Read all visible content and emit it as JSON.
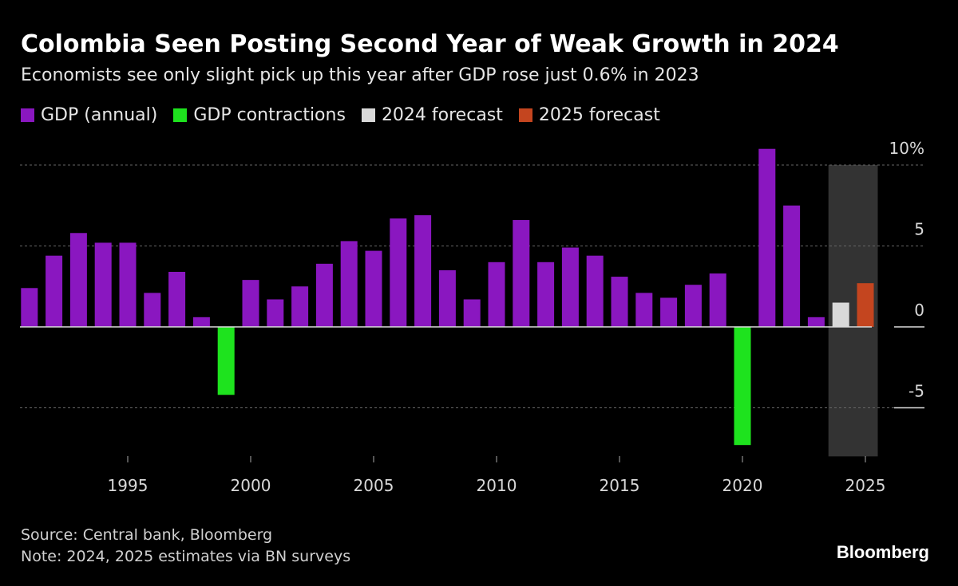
{
  "chart_data": {
    "type": "bar",
    "title": "Colombia Seen Posting Second Year of Weak Growth in 2024",
    "subtitle": "Economists see only slight pick up this year after GDP rose just 0.6% in 2023",
    "legend": [
      {
        "label": "GDP (annual)",
        "color": "#8a17c0"
      },
      {
        "label": "GDP contractions",
        "color": "#1ee31e"
      },
      {
        "label": "2024 forecast",
        "color": "#d9d9d9"
      },
      {
        "label": "2025 forecast",
        "color": "#c4451f"
      }
    ],
    "legend_placement": "top-left",
    "x": [
      1991,
      1992,
      1993,
      1994,
      1995,
      1996,
      1997,
      1998,
      1999,
      2000,
      2001,
      2002,
      2003,
      2004,
      2005,
      2006,
      2007,
      2008,
      2009,
      2010,
      2011,
      2012,
      2013,
      2014,
      2015,
      2016,
      2017,
      2018,
      2019,
      2020,
      2021,
      2022,
      2023,
      2024,
      2025
    ],
    "values": [
      2.4,
      4.4,
      5.8,
      5.2,
      5.2,
      2.1,
      3.4,
      0.6,
      -4.2,
      2.9,
      1.7,
      2.5,
      3.9,
      5.3,
      4.7,
      6.7,
      6.9,
      3.5,
      1.7,
      4.0,
      6.6,
      4.0,
      4.9,
      4.4,
      3.1,
      2.1,
      1.8,
      2.6,
      3.3,
      -7.3,
      11.0,
      7.5,
      0.6,
      1.5,
      2.7
    ],
    "x_ticks": [
      "1995",
      "2000",
      "2005",
      "2010",
      "2015",
      "2020",
      "2025"
    ],
    "x_tick_values": [
      1995,
      2000,
      2005,
      2010,
      2015,
      2020,
      2025
    ],
    "y_ticks": [
      "10%",
      "5",
      "0",
      "-5"
    ],
    "y_tick_values": [
      10,
      5,
      0,
      -5
    ],
    "ylim": [
      -8,
      11
    ],
    "grid": true,
    "forecast_shading": [
      2024,
      2025
    ],
    "xlabel": "",
    "ylabel": ""
  },
  "footer": {
    "source": "Source: Central bank, Bloomberg",
    "note": "Note: 2024, 2025 estimates via BN surveys"
  },
  "logo": "Bloomberg"
}
